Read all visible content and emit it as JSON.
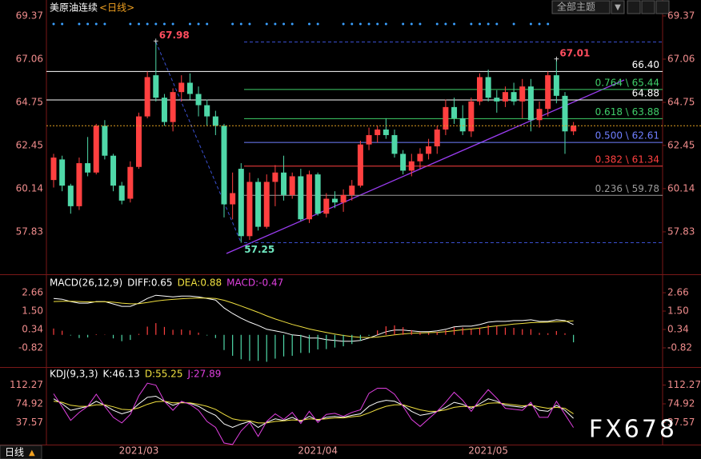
{
  "header": {
    "controls": [
      "全部主题",
      "▼"
    ],
    "period_tab": "日线",
    "period_arrow": "▲",
    "watermark": "FX678"
  },
  "chart_data": [
    {
      "type": "candlestick",
      "title": "美原油连续",
      "period": "<日线>",
      "categories": [
        null,
        null,
        null,
        null,
        null,
        null,
        null,
        null,
        null,
        null,
        "2021/03",
        null,
        null,
        null,
        null,
        null,
        null,
        null,
        null,
        null,
        null,
        null,
        null,
        null,
        null,
        null,
        null,
        null,
        null,
        null,
        null,
        "2021/04",
        null,
        null,
        null,
        null,
        null,
        null,
        null,
        null,
        null,
        null,
        null,
        null,
        null,
        null,
        null,
        null,
        null,
        null,
        null,
        "2021/05",
        null,
        null,
        null,
        null,
        null,
        null,
        null,
        null,
        null,
        null
      ],
      "open": [
        60.6,
        61.7,
        60.3,
        59.2,
        61.5,
        61.0,
        63.5,
        61.9,
        60.3,
        59.6,
        61.3,
        64.0,
        66.2,
        65.0,
        63.7,
        65.3,
        65.8,
        65.2,
        64.6,
        64.0,
        63.5,
        59.3,
        61.2,
        57.6,
        60.5,
        58.1,
        60.5,
        61.0,
        59.8,
        60.8,
        58.5,
        60.9,
        58.8,
        59.6,
        59.4,
        59.8,
        60.3,
        62.5,
        63.0,
        63.3,
        63.0,
        62.0,
        61.1,
        61.6,
        62.0,
        62.4,
        63.3,
        64.5,
        63.9,
        63.2,
        64.8,
        66.1,
        65.0,
        64.8,
        65.3,
        64.8,
        65.6,
        63.8,
        64.4,
        66.2,
        65.1,
        63.2
      ],
      "high": [
        62.0,
        61.9,
        60.4,
        61.8,
        62.9,
        63.6,
        63.8,
        62.0,
        60.5,
        61.6,
        64.2,
        66.4,
        67.98,
        65.2,
        65.5,
        66.2,
        66.3,
        65.6,
        64.9,
        64.3,
        63.6,
        61.0,
        61.5,
        61.0,
        60.7,
        60.9,
        61.4,
        61.9,
        61.0,
        61.2,
        61.1,
        61.0,
        59.9,
        60.0,
        60.1,
        60.6,
        62.7,
        63.4,
        63.5,
        63.9,
        63.3,
        62.2,
        62.0,
        62.3,
        62.8,
        63.5,
        64.9,
        65.0,
        64.6,
        65.0,
        66.3,
        66.5,
        65.4,
        65.6,
        65.8,
        66.0,
        66.0,
        64.8,
        66.4,
        67.01,
        65.3,
        63.7
      ],
      "low": [
        60.2,
        60.0,
        58.8,
        59.0,
        60.8,
        60.9,
        61.7,
        60.0,
        59.3,
        59.4,
        61.2,
        63.9,
        64.8,
        63.5,
        63.2,
        64.8,
        64.9,
        64.0,
        63.5,
        63.0,
        58.6,
        58.5,
        57.25,
        57.4,
        57.9,
        58.0,
        59.2,
        59.5,
        59.6,
        58.4,
        58.3,
        58.7,
        58.6,
        59.1,
        58.9,
        59.5,
        60.2,
        62.2,
        62.6,
        62.8,
        61.8,
        60.9,
        60.8,
        61.2,
        61.7,
        62.0,
        63.0,
        63.6,
        63.0,
        62.9,
        64.6,
        64.8,
        64.2,
        64.5,
        64.6,
        63.9,
        63.2,
        63.4,
        64.0,
        64.7,
        62.0,
        63.0
      ],
      "close": [
        61.8,
        60.3,
        59.2,
        61.5,
        61.0,
        63.5,
        61.9,
        60.3,
        59.5,
        61.3,
        64.0,
        66.1,
        65.0,
        63.7,
        65.3,
        65.8,
        65.2,
        64.6,
        64.0,
        63.5,
        59.3,
        59.9,
        57.6,
        60.5,
        58.1,
        60.5,
        61.0,
        59.8,
        60.8,
        58.5,
        60.9,
        58.8,
        59.6,
        59.4,
        59.8,
        60.3,
        62.5,
        63.0,
        63.3,
        63.0,
        62.0,
        61.1,
        61.6,
        62.0,
        62.4,
        63.3,
        64.5,
        63.9,
        63.2,
        64.8,
        66.1,
        65.0,
        64.8,
        65.3,
        64.8,
        65.6,
        63.8,
        64.4,
        66.2,
        65.1,
        63.2,
        63.5
      ],
      "up_color": "#ff4040",
      "down_color": "#4fd8a8",
      "ylim": [
        55.69,
        69.88
      ],
      "yticks": [
        69.37,
        67.06,
        64.75,
        62.45,
        60.14,
        57.83
      ],
      "annotations": [
        {
          "value": 67.98,
          "color": "#ff4d5e",
          "line": true
        },
        {
          "value": 67.01,
          "color": "#ff4d5e",
          "line": false
        },
        {
          "value": 57.25,
          "color": "#6fe8c0",
          "line": true
        }
      ],
      "fib_levels": [
        {
          "value": 66.4,
          "label": "66.40",
          "color": "#ffffff",
          "full": true
        },
        {
          "value": 65.44,
          "label": "0.764 \\ 65.44",
          "color": "#3fcf6a",
          "full": false
        },
        {
          "value": 64.88,
          "label": "64.88",
          "color": "#ffffff",
          "full": true
        },
        {
          "value": 63.88,
          "label": "0.618 \\ 63.88",
          "color": "#3fcf6a",
          "full": false
        },
        {
          "value": 62.61,
          "label": "0.500 \\ 62.61",
          "color": "#6f7fff",
          "full": false
        },
        {
          "value": 61.34,
          "label": "0.382 \\ 61.34",
          "color": "#ff4040",
          "full": false
        },
        {
          "value": 59.78,
          "label": "0.236 \\ 59.78",
          "color": "#9a9a9a",
          "full": false
        }
      ]
    },
    {
      "type": "indicator",
      "title": "MACD(26,12,9)",
      "ylim": [
        -1.98,
        3.57
      ],
      "yticks": [
        2.66,
        {
          "value": 1.5,
          "label": "1.50"
        },
        0.34,
        -0.82
      ],
      "up_color": "#ff4040",
      "down_color": "#4fd8a8",
      "series": [
        {
          "name": "DIFF:0.65",
          "color": "#ffffff",
          "style": "line",
          "values": [
            2.3,
            2.25,
            2.1,
            2.0,
            2.0,
            2.1,
            2.1,
            1.95,
            1.8,
            1.8,
            2.0,
            2.3,
            2.5,
            2.45,
            2.4,
            2.45,
            2.45,
            2.4,
            2.3,
            2.2,
            1.7,
            1.35,
            1.05,
            0.8,
            0.6,
            0.35,
            0.25,
            0.15,
            0.0,
            -0.05,
            -0.2,
            -0.2,
            -0.3,
            -0.35,
            -0.4,
            -0.4,
            -0.35,
            -0.2,
            0.0,
            0.2,
            0.3,
            0.3,
            0.25,
            0.2,
            0.2,
            0.25,
            0.35,
            0.5,
            0.55,
            0.55,
            0.65,
            0.8,
            0.85,
            0.85,
            0.9,
            0.9,
            0.95,
            0.85,
            0.85,
            0.95,
            0.9,
            0.65
          ]
        },
        {
          "name": "DEA:0.88",
          "color": "#f0e040",
          "style": "line",
          "values": [
            2.1,
            2.12,
            2.12,
            2.1,
            2.08,
            2.08,
            2.09,
            2.06,
            2.0,
            1.96,
            1.97,
            2.04,
            2.13,
            2.2,
            2.24,
            2.28,
            2.31,
            2.33,
            2.32,
            2.3,
            2.18,
            2.01,
            1.82,
            1.62,
            1.42,
            1.2,
            1.0,
            0.83,
            0.66,
            0.52,
            0.37,
            0.26,
            0.15,
            0.05,
            -0.04,
            -0.11,
            -0.16,
            -0.17,
            -0.14,
            -0.07,
            0.0,
            0.06,
            0.1,
            0.12,
            0.14,
            0.16,
            0.2,
            0.26,
            0.32,
            0.37,
            0.42,
            0.5,
            0.57,
            0.62,
            0.68,
            0.72,
            0.77,
            0.79,
            0.8,
            0.83,
            0.85,
            0.88
          ]
        },
        {
          "name": "MACD:-0.47",
          "color": "#e040e0",
          "style": "bar",
          "values": [
            0.4,
            0.26,
            -0.04,
            -0.2,
            -0.16,
            0.04,
            0.02,
            -0.22,
            -0.4,
            -0.32,
            0.06,
            0.52,
            0.74,
            0.5,
            0.32,
            0.34,
            0.28,
            0.14,
            -0.04,
            -0.2,
            -0.96,
            -1.32,
            -1.54,
            -1.64,
            -1.64,
            -1.7,
            -1.5,
            -1.36,
            -1.32,
            -1.14,
            -1.14,
            -0.92,
            -0.9,
            -0.8,
            -0.72,
            -0.58,
            -0.38,
            -0.06,
            0.28,
            0.54,
            0.6,
            0.48,
            0.3,
            0.16,
            0.12,
            0.18,
            0.3,
            0.48,
            0.46,
            0.36,
            0.46,
            0.6,
            0.56,
            0.46,
            0.44,
            0.36,
            0.36,
            0.12,
            0.1,
            0.24,
            0.1,
            -0.47
          ]
        }
      ]
    },
    {
      "type": "indicator",
      "title": "KDJ(9,3,3)",
      "ylim": [
        -12.5,
        143.3
      ],
      "yticks": [
        112.27,
        74.92,
        37.57
      ],
      "series": [
        {
          "name": "K:46.13",
          "color": "#ffffff",
          "style": "line",
          "values": [
            85,
            75,
            62,
            66,
            70,
            80,
            72,
            62,
            55,
            60,
            75,
            88,
            90,
            80,
            72,
            78,
            76,
            70,
            60,
            52,
            35,
            28,
            35,
            40,
            28,
            38,
            45,
            42,
            48,
            40,
            50,
            42,
            48,
            50,
            48,
            52,
            55,
            70,
            78,
            82,
            80,
            72,
            60,
            52,
            55,
            60,
            68,
            78,
            74,
            66,
            75,
            85,
            80,
            72,
            70,
            68,
            74,
            62,
            60,
            72,
            62,
            46.13
          ]
        },
        {
          "name": "D:55.25",
          "color": "#f0e040",
          "style": "line",
          "values": [
            80,
            78,
            72,
            70,
            70,
            73,
            73,
            69,
            64,
            63,
            67,
            74,
            79,
            80,
            77,
            77,
            77,
            74,
            70,
            64,
            54,
            45,
            42,
            41,
            37,
            37,
            40,
            41,
            43,
            42,
            45,
            44,
            45,
            47,
            47,
            49,
            51,
            57,
            64,
            70,
            73,
            73,
            68,
            63,
            60,
            60,
            63,
            68,
            70,
            69,
            71,
            76,
            77,
            75,
            73,
            71,
            72,
            69,
            66,
            68,
            66,
            55.25
          ]
        },
        {
          "name": "J:27.89",
          "color": "#e040e0",
          "style": "line",
          "values": [
            95,
            69,
            42,
            58,
            70,
            94,
            70,
            48,
            37,
            54,
            91,
            116,
            112,
            80,
            62,
            80,
            74,
            62,
            40,
            28,
            -3,
            -6,
            21,
            38,
            10,
            40,
            55,
            44,
            58,
            36,
            60,
            38,
            54,
            56,
            50,
            58,
            63,
            96,
            106,
            106,
            94,
            70,
            44,
            30,
            45,
            60,
            78,
            98,
            82,
            60,
            83,
            103,
            86,
            66,
            64,
            62,
            78,
            48,
            48,
            80,
            54,
            27.89
          ]
        }
      ]
    }
  ]
}
